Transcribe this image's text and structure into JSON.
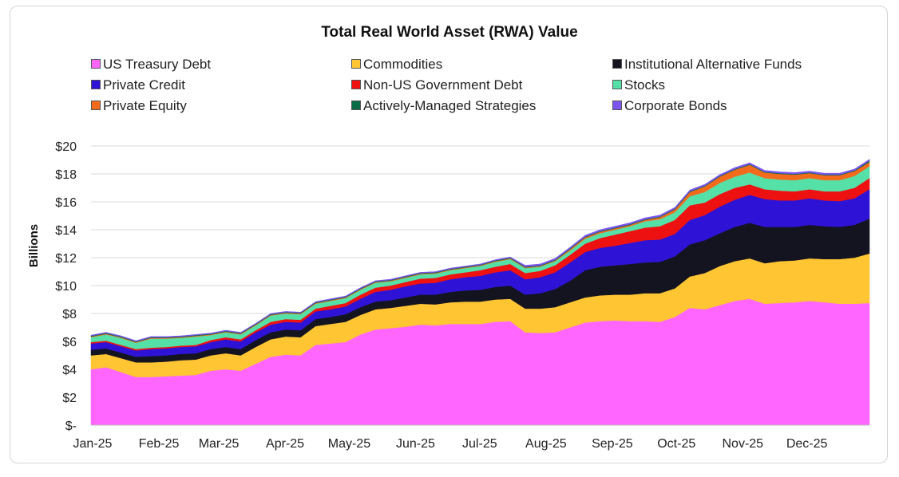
{
  "chart_data": {
    "type": "area",
    "stacked": true,
    "title": "Total Real World Asset (RWA) Value",
    "ylabel": "Billions",
    "xlabel": "",
    "ylim": [
      0,
      20
    ],
    "y_ticks": [
      "$-",
      "$2",
      "$4",
      "$6",
      "$8",
      "$10",
      "$12",
      "$14",
      "$16",
      "$18",
      "$20"
    ],
    "x_ticks": [
      "Jan-25",
      "Feb-25",
      "Mar-25",
      "Apr-25",
      "May-25",
      "Jun-25",
      "Jul-25",
      "Aug-25",
      "Sep-25",
      "Oct-25",
      "Nov-25",
      "Dec-25"
    ],
    "grid": "horizontal",
    "legend_position": "top",
    "x": [
      "2025-01-01",
      "2025-01-08",
      "2025-01-15",
      "2025-01-22",
      "2025-01-29",
      "2025-02-05",
      "2025-02-12",
      "2025-02-19",
      "2025-02-26",
      "2025-03-05",
      "2025-03-12",
      "2025-03-19",
      "2025-03-26",
      "2025-04-02",
      "2025-04-09",
      "2025-04-16",
      "2025-04-23",
      "2025-04-30",
      "2025-05-07",
      "2025-05-14",
      "2025-05-21",
      "2025-05-28",
      "2025-06-04",
      "2025-06-11",
      "2025-06-18",
      "2025-06-25",
      "2025-07-02",
      "2025-07-09",
      "2025-07-16",
      "2025-07-23",
      "2025-07-30",
      "2025-08-06",
      "2025-08-13",
      "2025-08-20",
      "2025-08-27",
      "2025-09-03",
      "2025-09-10",
      "2025-09-17",
      "2025-09-24",
      "2025-10-01",
      "2025-10-08",
      "2025-10-15",
      "2025-10-22",
      "2025-10-29",
      "2025-11-05",
      "2025-11-12",
      "2025-11-19",
      "2025-11-26",
      "2025-12-03",
      "2025-12-10",
      "2025-12-17",
      "2025-12-24",
      "2025-12-31"
    ],
    "series": [
      {
        "name": "US Treasury Debt",
        "color": "#FF66FF",
        "values": [
          4.0,
          4.15,
          3.8,
          3.45,
          3.45,
          3.5,
          3.55,
          3.6,
          3.9,
          4.0,
          3.9,
          4.4,
          4.9,
          5.05,
          5.0,
          5.75,
          5.85,
          5.95,
          6.5,
          6.85,
          6.95,
          7.05,
          7.2,
          7.15,
          7.25,
          7.25,
          7.25,
          7.4,
          7.45,
          6.65,
          6.6,
          6.65,
          7.0,
          7.35,
          7.45,
          7.5,
          7.45,
          7.45,
          7.4,
          7.75,
          8.4,
          8.3,
          8.6,
          8.9,
          9.05,
          8.7,
          8.75,
          8.8,
          8.9,
          8.8,
          8.7,
          8.7,
          8.75
        ]
      },
      {
        "name": "Commodities",
        "color": "#FFC533",
        "values": [
          1.0,
          0.95,
          1.0,
          1.05,
          1.05,
          1.05,
          1.1,
          1.1,
          1.1,
          1.15,
          1.1,
          1.2,
          1.25,
          1.3,
          1.3,
          1.35,
          1.4,
          1.45,
          1.4,
          1.45,
          1.45,
          1.5,
          1.5,
          1.5,
          1.55,
          1.6,
          1.6,
          1.6,
          1.6,
          1.7,
          1.75,
          1.8,
          1.8,
          1.8,
          1.85,
          1.85,
          1.9,
          2.0,
          2.05,
          2.05,
          2.25,
          2.6,
          2.8,
          2.85,
          2.9,
          2.9,
          3.0,
          3.0,
          3.05,
          3.1,
          3.2,
          3.3,
          3.55
        ]
      },
      {
        "name": "Institutional Alternative Funds",
        "color": "#141420",
        "values": [
          0.4,
          0.4,
          0.4,
          0.4,
          0.45,
          0.45,
          0.45,
          0.45,
          0.45,
          0.45,
          0.45,
          0.5,
          0.5,
          0.5,
          0.5,
          0.5,
          0.5,
          0.55,
          0.55,
          0.55,
          0.55,
          0.6,
          0.65,
          0.7,
          0.75,
          0.8,
          0.85,
          0.9,
          0.95,
          1.0,
          1.1,
          1.3,
          1.55,
          1.95,
          2.05,
          2.1,
          2.2,
          2.2,
          2.25,
          2.3,
          2.3,
          2.35,
          2.35,
          2.45,
          2.55,
          2.6,
          2.45,
          2.4,
          2.4,
          2.35,
          2.3,
          2.35,
          2.5
        ]
      },
      {
        "name": "Private Credit",
        "color": "#2E12D6",
        "values": [
          0.45,
          0.45,
          0.45,
          0.45,
          0.5,
          0.5,
          0.5,
          0.5,
          0.5,
          0.55,
          0.55,
          0.55,
          0.55,
          0.55,
          0.55,
          0.55,
          0.55,
          0.55,
          0.6,
          0.7,
          0.75,
          0.8,
          0.8,
          0.85,
          0.9,
          0.95,
          1.0,
          1.05,
          1.1,
          1.1,
          1.15,
          1.2,
          1.3,
          1.3,
          1.35,
          1.4,
          1.5,
          1.6,
          1.6,
          1.6,
          1.75,
          1.8,
          1.9,
          1.95,
          2.0,
          2.0,
          1.9,
          1.9,
          1.9,
          1.85,
          1.85,
          1.9,
          2.1
        ]
      },
      {
        "name": "Non-US Government Debt",
        "color": "#EE1111",
        "values": [
          0.1,
          0.1,
          0.1,
          0.1,
          0.1,
          0.1,
          0.1,
          0.1,
          0.15,
          0.15,
          0.15,
          0.15,
          0.2,
          0.2,
          0.2,
          0.2,
          0.25,
          0.25,
          0.3,
          0.3,
          0.3,
          0.3,
          0.35,
          0.35,
          0.35,
          0.35,
          0.4,
          0.4,
          0.45,
          0.45,
          0.45,
          0.5,
          0.55,
          0.6,
          0.7,
          0.8,
          0.85,
          0.9,
          0.95,
          1.0,
          1.05,
          0.9,
          0.9,
          0.85,
          0.75,
          0.7,
          0.7,
          0.65,
          0.65,
          0.65,
          0.7,
          0.75,
          0.8
        ]
      },
      {
        "name": "Stocks",
        "color": "#55E0A8",
        "values": [
          0.35,
          0.45,
          0.5,
          0.45,
          0.65,
          0.6,
          0.55,
          0.6,
          0.35,
          0.35,
          0.35,
          0.35,
          0.45,
          0.4,
          0.4,
          0.35,
          0.35,
          0.35,
          0.35,
          0.35,
          0.3,
          0.3,
          0.3,
          0.3,
          0.3,
          0.3,
          0.3,
          0.35,
          0.35,
          0.35,
          0.3,
          0.3,
          0.3,
          0.35,
          0.35,
          0.35,
          0.35,
          0.45,
          0.5,
          0.55,
          0.65,
          0.75,
          0.8,
          0.8,
          0.85,
          0.8,
          0.8,
          0.8,
          0.8,
          0.8,
          0.8,
          0.85,
          0.85
        ]
      },
      {
        "name": "Private Equity",
        "color": "#F26B1D",
        "values": [
          0.05,
          0.05,
          0.05,
          0.05,
          0.05,
          0.05,
          0.05,
          0.05,
          0.05,
          0.05,
          0.05,
          0.05,
          0.05,
          0.05,
          0.05,
          0.05,
          0.05,
          0.05,
          0.05,
          0.05,
          0.05,
          0.05,
          0.05,
          0.05,
          0.05,
          0.05,
          0.05,
          0.05,
          0.05,
          0.05,
          0.05,
          0.05,
          0.1,
          0.1,
          0.1,
          0.1,
          0.1,
          0.1,
          0.15,
          0.2,
          0.3,
          0.4,
          0.45,
          0.5,
          0.55,
          0.4,
          0.4,
          0.4,
          0.35,
          0.35,
          0.35,
          0.35,
          0.3
        ]
      },
      {
        "name": "Actively-Managed Strategies",
        "color": "#0B6B47",
        "values": [
          0.05,
          0.05,
          0.05,
          0.05,
          0.05,
          0.05,
          0.05,
          0.05,
          0.05,
          0.05,
          0.05,
          0.05,
          0.05,
          0.05,
          0.05,
          0.05,
          0.05,
          0.05,
          0.05,
          0.05,
          0.05,
          0.05,
          0.05,
          0.05,
          0.05,
          0.05,
          0.05,
          0.05,
          0.05,
          0.05,
          0.05,
          0.05,
          0.05,
          0.05,
          0.05,
          0.05,
          0.05,
          0.05,
          0.05,
          0.05,
          0.05,
          0.05,
          0.05,
          0.05,
          0.05,
          0.05,
          0.05,
          0.05,
          0.05,
          0.05,
          0.05,
          0.05,
          0.1
        ]
      },
      {
        "name": "Corporate Bonds",
        "color": "#7B55F0",
        "values": [
          0.05,
          0.05,
          0.05,
          0.05,
          0.05,
          0.05,
          0.05,
          0.05,
          0.05,
          0.05,
          0.05,
          0.05,
          0.05,
          0.05,
          0.05,
          0.05,
          0.05,
          0.05,
          0.05,
          0.05,
          0.05,
          0.05,
          0.05,
          0.05,
          0.05,
          0.05,
          0.05,
          0.05,
          0.05,
          0.1,
          0.1,
          0.1,
          0.1,
          0.1,
          0.1,
          0.1,
          0.1,
          0.1,
          0.1,
          0.1,
          0.1,
          0.1,
          0.1,
          0.1,
          0.1,
          0.1,
          0.1,
          0.1,
          0.1,
          0.1,
          0.1,
          0.1,
          0.1
        ]
      }
    ]
  }
}
